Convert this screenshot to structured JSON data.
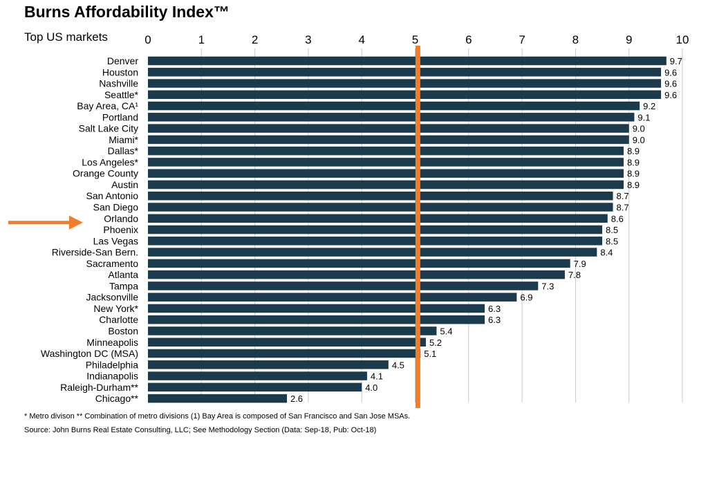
{
  "title": "Burns Affordability Index™",
  "subtitle": "Top US markets",
  "footnote": "* Metro divison ** Combination of metro divisions (1) Bay Area is composed of San Francisco and San Jose MSAs.",
  "source": "Source: John Burns Real Estate Consulting, LLC; See Methodology Section (Data: Sep-18, Pub: Oct-18)",
  "colors": {
    "bar": "#1b3a4c",
    "reference_line": "#ef7d2a",
    "arrow": "#ef7d2a",
    "grid": "#c8c8c8"
  },
  "chart_data": {
    "type": "bar",
    "orientation": "horizontal",
    "title": "Burns Affordability Index™",
    "subtitle": "Top US markets",
    "xlim": [
      0,
      10
    ],
    "x_axis_position": "top",
    "xticks": [
      "0",
      "1",
      "2",
      "3",
      "4",
      "5",
      "6",
      "7",
      "8",
      "9",
      "10"
    ],
    "grid": "vertical",
    "reference_line": 5.05,
    "highlight_arrow": "Orlando",
    "categories": [
      "Denver",
      "Houston",
      "Nashville",
      "Seattle*",
      "Bay Area, CA¹",
      "Portland",
      "Salt Lake City",
      "Miami*",
      "Dallas*",
      "Los Angeles*",
      "Orange County",
      "Austin",
      "San Antonio",
      "San Diego",
      "Orlando",
      "Phoenix",
      "Las Vegas",
      "Riverside-San Bern.",
      "Sacramento",
      "Atlanta",
      "Tampa",
      "Jacksonville",
      "New York*",
      "Charlotte",
      "Boston",
      "Minneapolis",
      "Washington DC (MSA)",
      "Philadelphia",
      "Indianapolis",
      "Raleigh-Durham**",
      "Chicago**"
    ],
    "values": [
      9.7,
      9.6,
      9.6,
      9.6,
      9.2,
      9.1,
      9.0,
      9.0,
      8.9,
      8.9,
      8.9,
      8.9,
      8.7,
      8.7,
      8.6,
      8.5,
      8.5,
      8.4,
      7.9,
      7.8,
      7.3,
      6.9,
      6.3,
      6.3,
      5.4,
      5.2,
      5.1,
      4.5,
      4.1,
      4.0,
      2.6
    ],
    "labels": [
      "9.7",
      "9.6",
      "9.6",
      "9.6",
      "9.2",
      "9.1",
      "9.0",
      "9.0",
      "8.9",
      "8.9",
      "8.9",
      "8.9",
      "8.7",
      "8.7",
      "8.6",
      "8.5",
      "8.5",
      "8.4",
      "7.9",
      "7.8",
      "7.3",
      "6.9",
      "6.3",
      "6.3",
      "5.4",
      "5.2",
      "5.1",
      "4.5",
      "4.1",
      "4.0",
      "2.6"
    ]
  }
}
